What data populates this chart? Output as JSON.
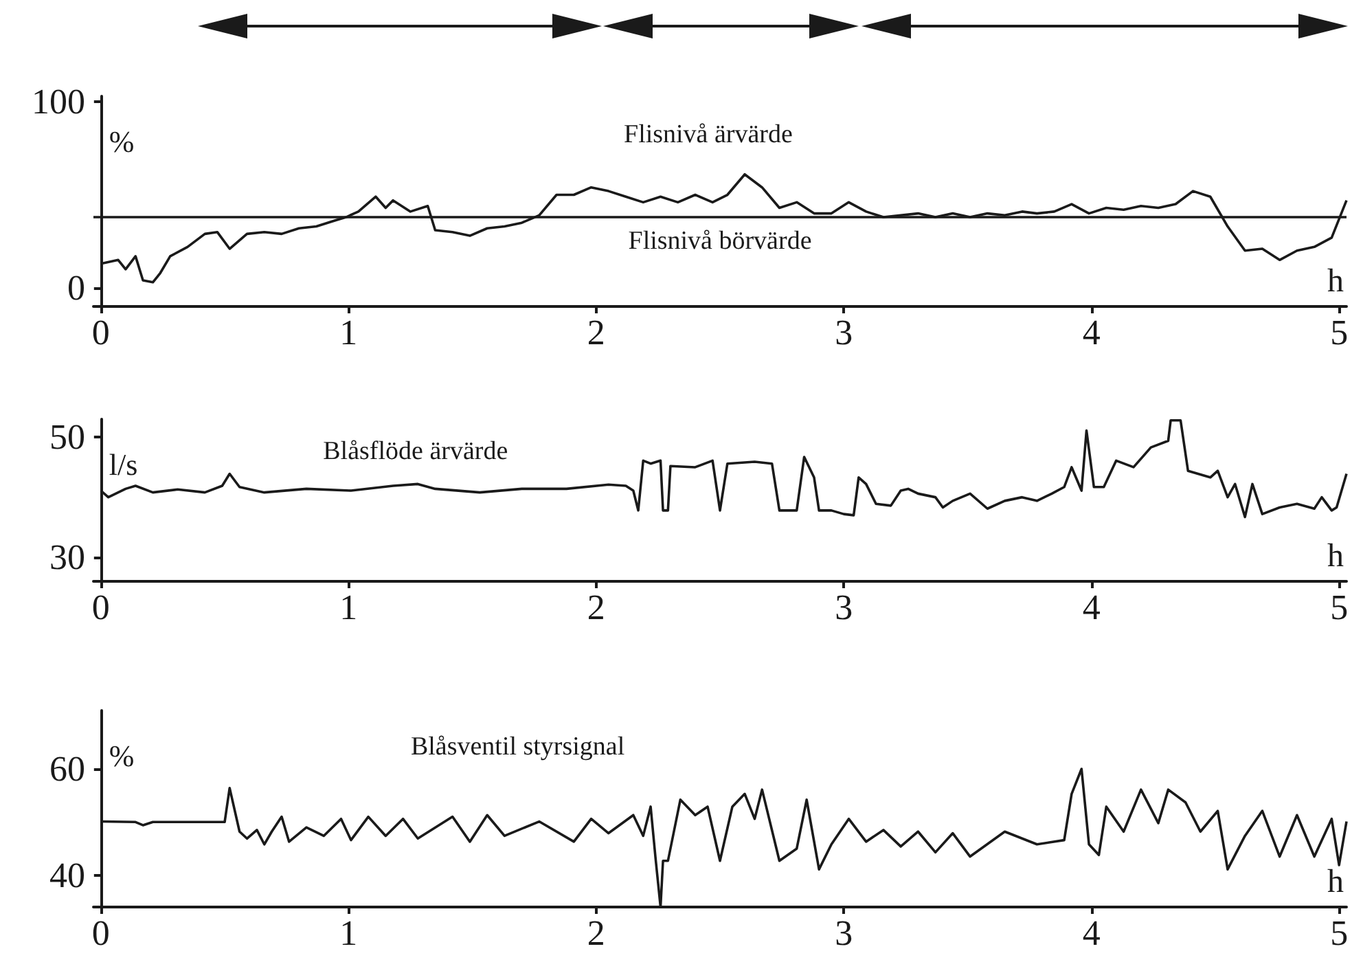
{
  "chart_data": [
    {
      "type": "line",
      "xlabel": "h",
      "ylabel": "%",
      "xlim": [
        -0.03,
        5.03
      ],
      "xticks": [
        0,
        1,
        2,
        3,
        4,
        5
      ],
      "ylim": [
        -10,
        103
      ],
      "yticks": [
        0,
        100
      ],
      "marker": "none",
      "line_style": "solid",
      "x": [
        0,
        0.07,
        0.1,
        0.14,
        0.17,
        0.21,
        0.24,
        0.28,
        0.35,
        0.42,
        0.47,
        0.52,
        0.59,
        0.66,
        0.73,
        0.8,
        0.87,
        0.94,
        0.99,
        1.04,
        1.11,
        1.15,
        1.18,
        1.25,
        1.32,
        1.35,
        1.42,
        1.49,
        1.56,
        1.63,
        1.7,
        1.77,
        1.84,
        1.91,
        1.98,
        2.05,
        2.12,
        2.19,
        2.26,
        2.33,
        2.4,
        2.47,
        2.53,
        2.6,
        2.67,
        2.74,
        2.81,
        2.88,
        2.95,
        3.02,
        3.09,
        3.16,
        3.23,
        3.3,
        3.37,
        3.44,
        3.51,
        3.58,
        3.65,
        3.72,
        3.78,
        3.85,
        3.92,
        3.99,
        4.06,
        4.13,
        4.2,
        4.27,
        4.34,
        4.41,
        4.48,
        4.55,
        4.62,
        4.69,
        4.76,
        4.83,
        4.9,
        4.97,
        5.03
      ],
      "series": [
        {
          "name": "Flisnivå ärvärde",
          "color": "#1a1a1a",
          "values": [
            13,
            15,
            10,
            17,
            4,
            3,
            8,
            17,
            22,
            29,
            30,
            21,
            29,
            30,
            29,
            32,
            33,
            36,
            38,
            41,
            49,
            43,
            47,
            41,
            44,
            31,
            30,
            28,
            32,
            33,
            35,
            39,
            50,
            50,
            54,
            52,
            49,
            46,
            49,
            46,
            50,
            46,
            50,
            61,
            54,
            43,
            46,
            40,
            40,
            46,
            41,
            38,
            39,
            40,
            38,
            40,
            38,
            40,
            39,
            41,
            40,
            41,
            45,
            40,
            43,
            42,
            44,
            43,
            45,
            52,
            49,
            33,
            20,
            21,
            15,
            20,
            22,
            27,
            47
          ]
        }
      ],
      "ref_lines": [
        {
          "axis": "y",
          "value": 38,
          "label": "Flisnivå börvärde",
          "color": "#1a1a1a"
        }
      ]
    },
    {
      "type": "line",
      "xlabel": "h",
      "ylabel": "l/s",
      "xlim": [
        -0.03,
        5.03
      ],
      "xticks": [
        0,
        1,
        2,
        3,
        4,
        5
      ],
      "ylim": [
        26,
        53
      ],
      "yticks": [
        30,
        50
      ],
      "marker": "none",
      "line_style": "solid",
      "x": [
        0,
        0.03,
        0.1,
        0.14,
        0.21,
        0.31,
        0.42,
        0.49,
        0.52,
        0.56,
        0.66,
        0.83,
        1.01,
        1.18,
        1.28,
        1.35,
        1.53,
        1.7,
        1.88,
        2.05,
        2.12,
        2.15,
        2.17,
        2.19,
        2.22,
        2.26,
        2.27,
        2.29,
        2.3,
        2.4,
        2.47,
        2.5,
        2.53,
        2.64,
        2.71,
        2.74,
        2.81,
        2.84,
        2.88,
        2.9,
        2.95,
        3.0,
        3.04,
        3.06,
        3.09,
        3.13,
        3.19,
        3.23,
        3.26,
        3.3,
        3.37,
        3.4,
        3.44,
        3.51,
        3.58,
        3.65,
        3.72,
        3.78,
        3.84,
        3.89,
        3.92,
        3.96,
        3.98,
        4.01,
        4.05,
        4.1,
        4.17,
        4.24,
        4.31,
        4.32,
        4.36,
        4.39,
        4.48,
        4.51,
        4.55,
        4.58,
        4.62,
        4.65,
        4.69,
        4.76,
        4.83,
        4.9,
        4.93,
        4.97,
        4.99,
        5.03
      ],
      "series": [
        {
          "name": "Blåsflöde ärvärde",
          "color": "#1a1a1a",
          "values": [
            41.1,
            40,
            41.4,
            41.9,
            40.8,
            41.3,
            40.8,
            41.9,
            43.9,
            41.7,
            40.8,
            41.4,
            41.1,
            41.9,
            42.2,
            41.4,
            40.8,
            41.4,
            41.4,
            42.1,
            41.9,
            41.1,
            37.8,
            46.1,
            45.6,
            46.1,
            37.8,
            37.8,
            45.2,
            45,
            46.1,
            37.8,
            45.6,
            45.9,
            45.6,
            37.8,
            37.8,
            46.7,
            43.3,
            37.8,
            37.8,
            37.2,
            37,
            43.3,
            42.2,
            38.9,
            38.6,
            41.1,
            41.4,
            40.6,
            40,
            38.3,
            39.4,
            40.6,
            38.1,
            39.4,
            40,
            39.4,
            40.6,
            41.7,
            45,
            41.1,
            51.1,
            41.7,
            41.7,
            46.1,
            45,
            48.3,
            49.4,
            52.8,
            52.8,
            44.4,
            43.3,
            44.4,
            40,
            42.2,
            36.7,
            42.2,
            37.2,
            38.3,
            38.9,
            38.1,
            40,
            37.8,
            38.3,
            43.9
          ]
        }
      ]
    },
    {
      "type": "line",
      "xlabel": "h",
      "ylabel": "%",
      "xlim": [
        -0.03,
        5.03
      ],
      "xticks": [
        0,
        1,
        2,
        3,
        4,
        5
      ],
      "ylim": [
        34,
        71
      ],
      "yticks": [
        40,
        60
      ],
      "marker": "none",
      "line_style": "solid",
      "x": [
        0,
        0.14,
        0.17,
        0.21,
        0.5,
        0.52,
        0.56,
        0.59,
        0.63,
        0.66,
        0.69,
        0.73,
        0.76,
        0.83,
        0.9,
        0.97,
        1.01,
        1.08,
        1.15,
        1.22,
        1.28,
        1.42,
        1.49,
        1.56,
        1.63,
        1.77,
        1.91,
        1.98,
        2.05,
        2.15,
        2.19,
        2.22,
        2.24,
        2.26,
        2.27,
        2.29,
        2.34,
        2.4,
        2.45,
        2.5,
        2.55,
        2.6,
        2.64,
        2.67,
        2.74,
        2.81,
        2.85,
        2.9,
        2.95,
        3.02,
        3.09,
        3.16,
        3.23,
        3.3,
        3.37,
        3.44,
        3.51,
        3.65,
        3.78,
        3.89,
        3.92,
        3.96,
        3.99,
        4.03,
        4.06,
        4.13,
        4.2,
        4.27,
        4.31,
        4.38,
        4.44,
        4.51,
        4.55,
        4.62,
        4.69,
        4.76,
        4.83,
        4.9,
        4.97,
        5.0,
        5.03
      ],
      "series": [
        {
          "name": "Blåsventil styrsignal",
          "color": "#1a1a1a",
          "values": [
            50.1,
            50,
            49.4,
            50,
            50,
            56.4,
            48.2,
            46.9,
            48.5,
            45.8,
            48.2,
            51,
            46.3,
            49,
            47.4,
            50.6,
            46.6,
            51,
            47.4,
            50.6,
            46.9,
            51,
            46.3,
            51.3,
            47.4,
            50.1,
            46.3,
            50.6,
            47.9,
            51.3,
            47.4,
            52.9,
            43.1,
            34,
            42.7,
            42.7,
            54.2,
            51.3,
            52.9,
            42.7,
            52.9,
            55.3,
            50.6,
            56.1,
            42.7,
            45,
            54.2,
            41.1,
            45.8,
            50.6,
            46.3,
            48.5,
            45.4,
            48.2,
            44.3,
            47.9,
            43.5,
            48.2,
            45.8,
            46.6,
            55.3,
            60,
            45.8,
            43.8,
            52.9,
            48.2,
            56.1,
            49.8,
            56.1,
            53.7,
            48.2,
            52.1,
            41.1,
            47.4,
            52.1,
            43.5,
            51.3,
            43.5,
            50.6,
            41.9,
            50.1
          ]
        }
      ]
    }
  ]
}
